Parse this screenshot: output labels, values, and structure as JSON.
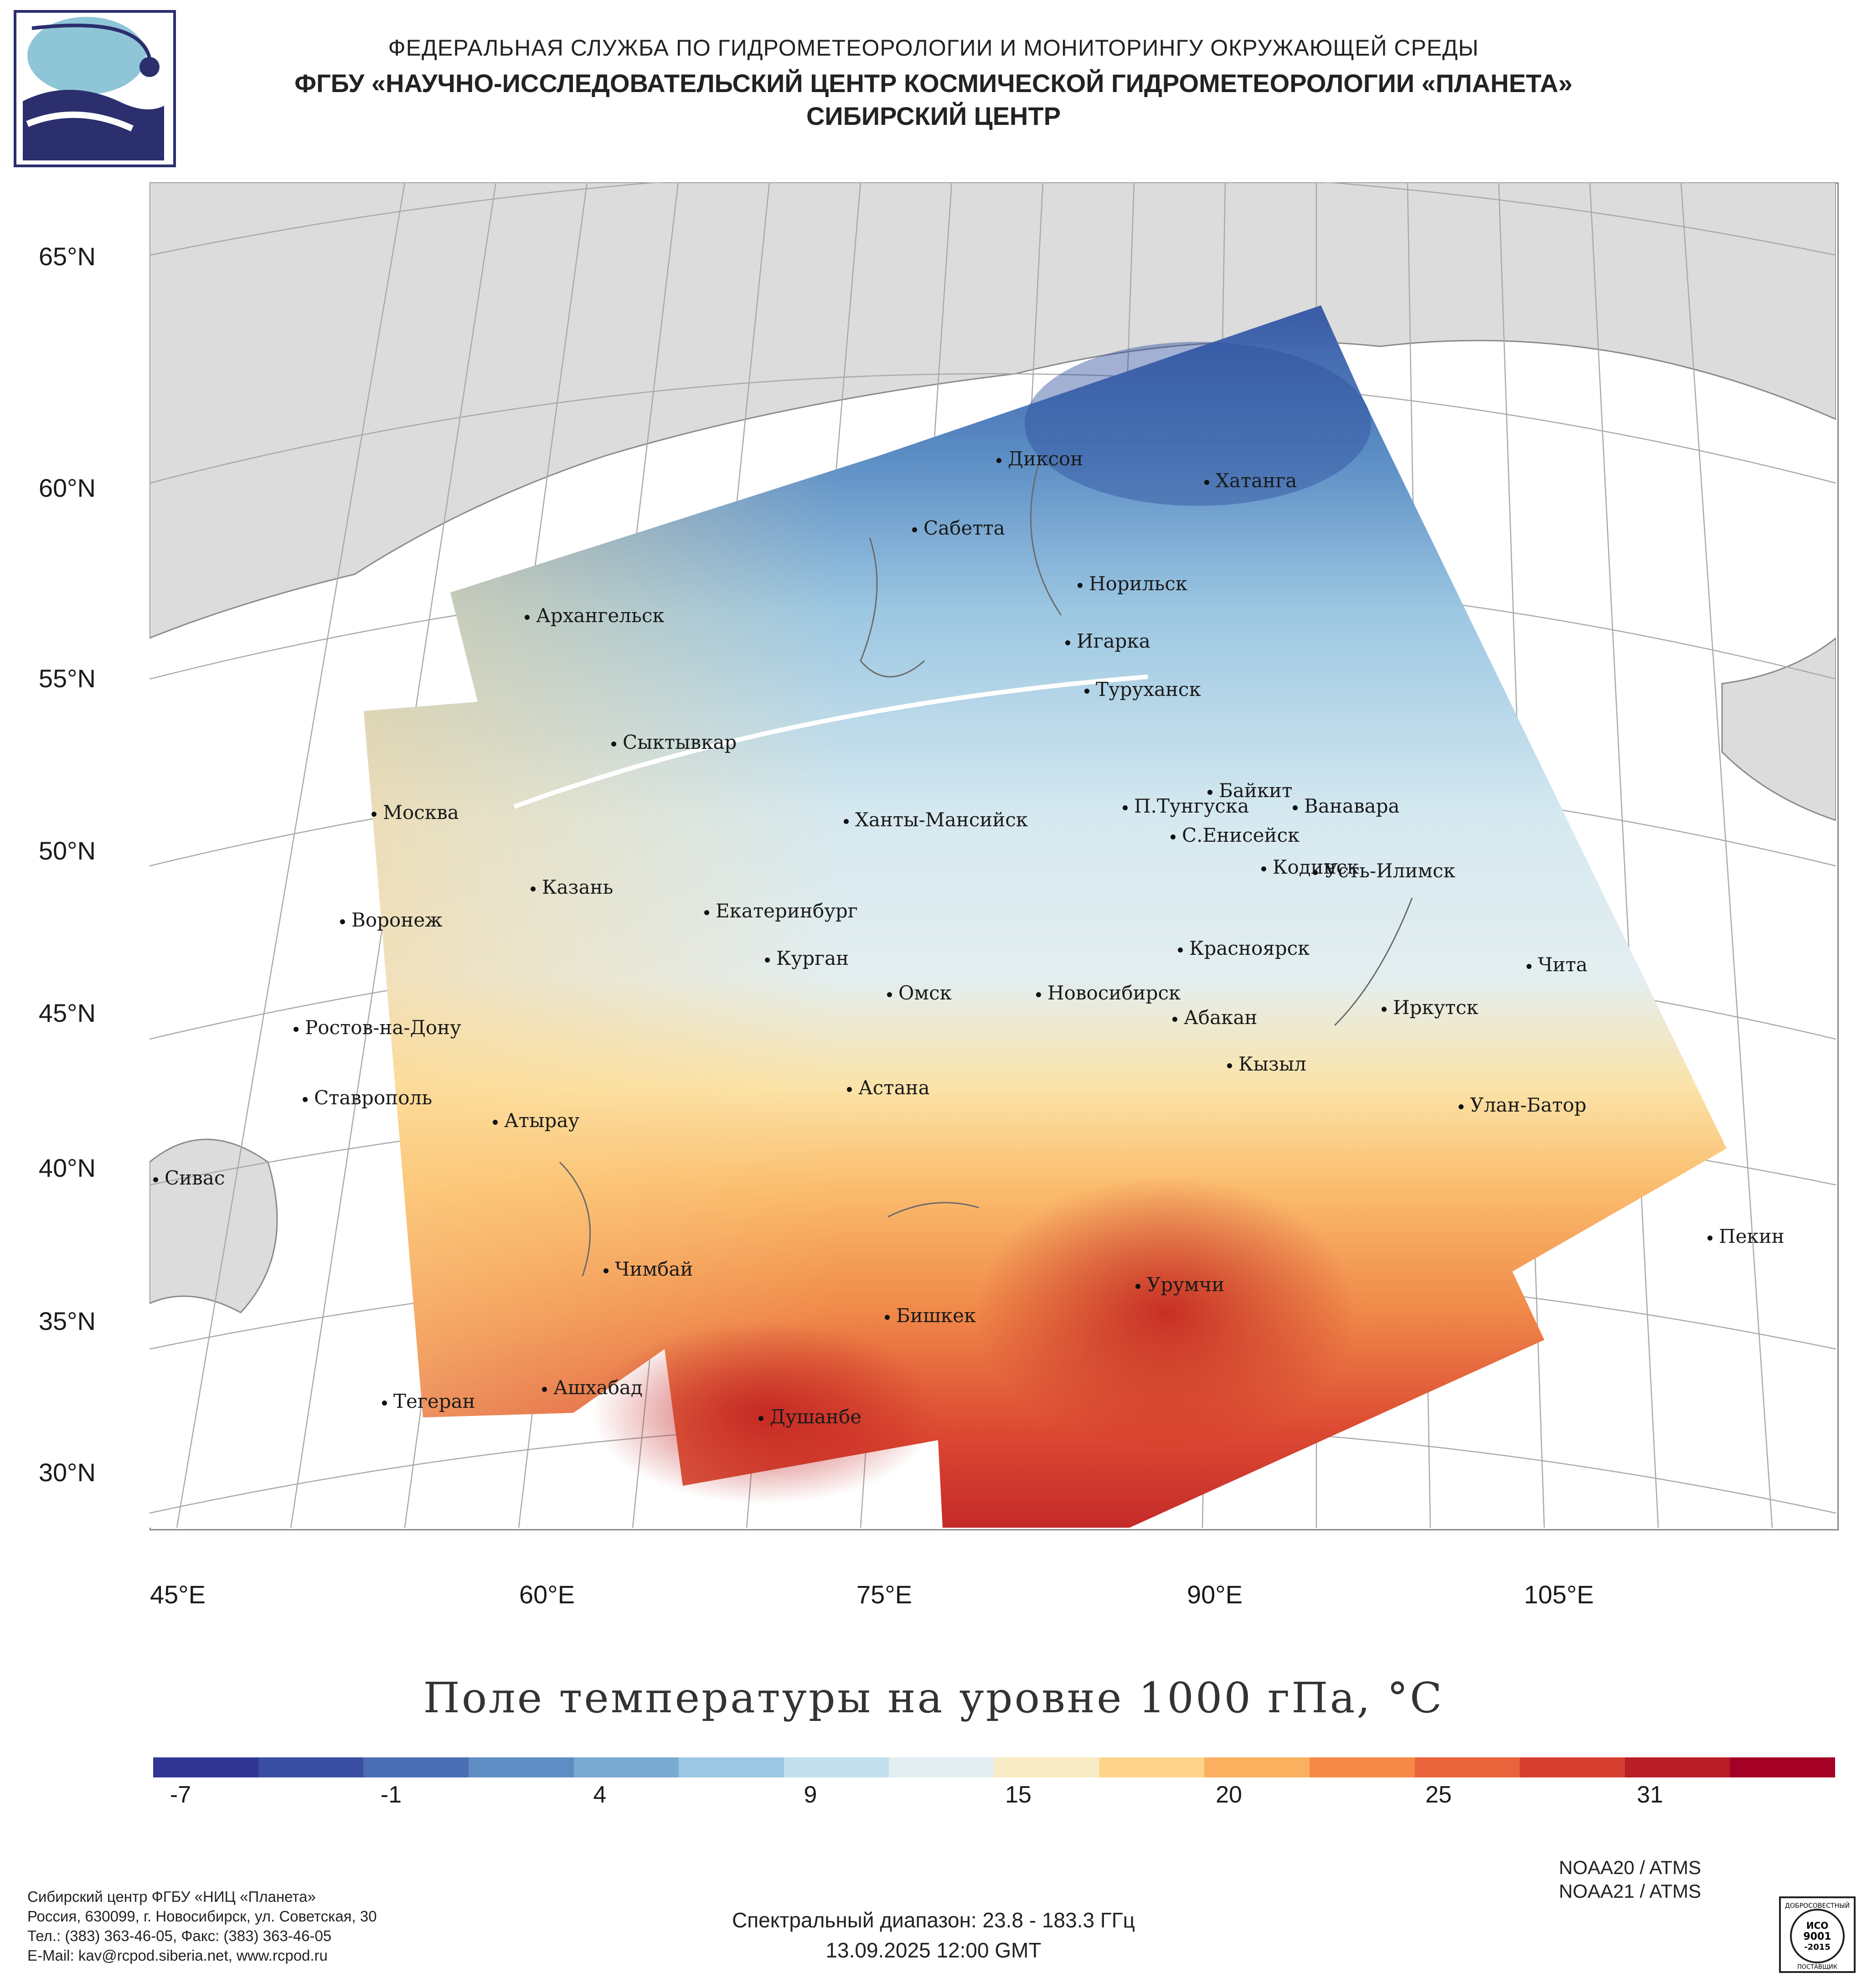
{
  "header": {
    "line1": "ФЕДЕРАЛЬНАЯ СЛУЖБА ПО ГИДРОМЕТЕОРОЛОГИИ И МОНИТОРИНГУ ОКРУЖАЮЩЕЙ СРЕДЫ",
    "line2": "ФГБУ «НАУЧНО-ИССЛЕДОВАТЕЛЬСКИЙ ЦЕНТР КОСМИЧЕСКОЙ ГИДРОМЕТЕОРОЛОГИИ «ПЛАНЕТА»",
    "line3": "СИБИРСКИЙ ЦЕНТР"
  },
  "map": {
    "lat_labels": [
      "65°N",
      "60°N",
      "55°N",
      "50°N",
      "45°N",
      "40°N",
      "35°N",
      "30°N"
    ],
    "lon_labels": [
      "45°E",
      "60°E",
      "75°E",
      "90°E",
      "105°E"
    ],
    "cities": [
      {
        "name": "Диксон"
      },
      {
        "name": "Хатанга"
      },
      {
        "name": "Сабетта"
      },
      {
        "name": "Норильск"
      },
      {
        "name": "Архангельск"
      },
      {
        "name": "Игарка"
      },
      {
        "name": "Туруханск"
      },
      {
        "name": "Сыктывкар"
      },
      {
        "name": "Байкит"
      },
      {
        "name": "П.Тунгуска"
      },
      {
        "name": "Ванавара"
      },
      {
        "name": "Москва"
      },
      {
        "name": "Ханты-Мансийск"
      },
      {
        "name": "С.Енисейск"
      },
      {
        "name": "Кодинск"
      },
      {
        "name": "Усть-Илимск"
      },
      {
        "name": "Казань"
      },
      {
        "name": "Екатеринбург"
      },
      {
        "name": "Воронеж"
      },
      {
        "name": "Красноярск"
      },
      {
        "name": "Курган"
      },
      {
        "name": "Чита"
      },
      {
        "name": "Омск"
      },
      {
        "name": "Новосибирск"
      },
      {
        "name": "Иркутск"
      },
      {
        "name": "Абакан"
      },
      {
        "name": "Ростов-на-Дону"
      },
      {
        "name": "Кызыл"
      },
      {
        "name": "Астана"
      },
      {
        "name": "Ставрополь"
      },
      {
        "name": "Улан-Батор"
      },
      {
        "name": "Атырау"
      },
      {
        "name": "Сивас"
      },
      {
        "name": "Пекин"
      },
      {
        "name": "Чимбай"
      },
      {
        "name": "Урумчи"
      },
      {
        "name": "Бишкек"
      },
      {
        "name": "Ашхабад"
      },
      {
        "name": "Тегеран"
      },
      {
        "name": "Душанбе"
      }
    ]
  },
  "title": "Поле температуры на уровне 1000 гПа, °С",
  "colorbar": {
    "ticks": [
      "-7",
      "-1",
      "4",
      "9",
      "15",
      "20",
      "25",
      "31"
    ],
    "colors": [
      "#313695",
      "#3a4ea3",
      "#4a6db3",
      "#5f8cc3",
      "#7aa9d2",
      "#9cc7e2",
      "#c2e0ee",
      "#e3eef0",
      "#f7ebc4",
      "#fdd48a",
      "#fbb060",
      "#f58a46",
      "#e9643b",
      "#d63e30",
      "#b81d28",
      "#a50026"
    ]
  },
  "satellites": [
    "NOAA20 / ATMS",
    "NOAA21 / ATMS"
  ],
  "spectral": "Спектральный диапазон: 23.8 - 183.3 ГГц",
  "datetime": "13.09.2025 12:00 GMT",
  "footer": {
    "line1": "Сибирский центр ФГБУ «НИЦ «Планета»",
    "line2": "Россия, 630099, г. Новосибирск, ул. Советская, 30",
    "line3": "Тел.: (383) 363-46-05, Факс: (383) 363-46-05",
    "line4": "E-Mail: kav@rcpod.siberia.net, www.rcpod.ru"
  },
  "iso_badge": {
    "line1": "ДОБРОСОВЕСТНЫЙ",
    "line2": "ИСО",
    "line3": "9001",
    "line4": "-2015",
    "line5": "ПОСТАВЩИК"
  }
}
